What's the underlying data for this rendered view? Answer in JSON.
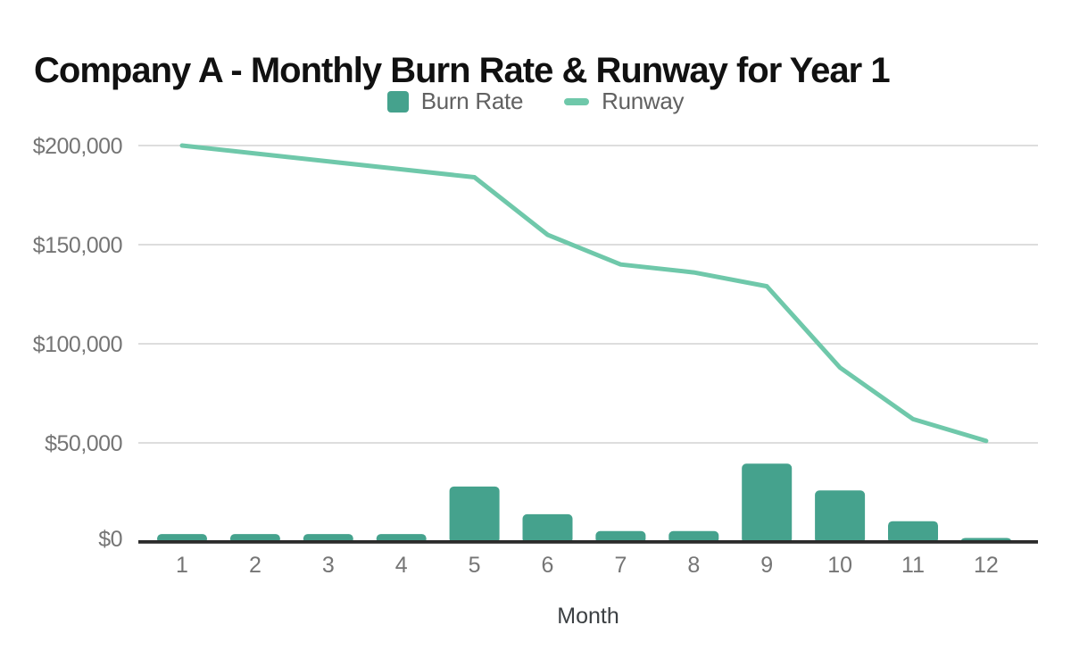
{
  "title": "Company A - Monthly Burn Rate & Runway for Year 1",
  "legend": {
    "items": [
      {
        "label": "Burn Rate",
        "swatch": "square",
        "color": "#45A28D"
      },
      {
        "label": "Runway",
        "swatch": "line",
        "color": "#6FC8AA"
      }
    ]
  },
  "chart_data": {
    "type": "bar+line combo",
    "title": "Company A - Monthly Burn Rate & Runway for Year 1",
    "categories": [
      "1",
      "2",
      "3",
      "4",
      "5",
      "6",
      "7",
      "8",
      "9",
      "10",
      "11",
      "12"
    ],
    "series": [
      {
        "name": "Burn Rate",
        "type": "bar",
        "color": "#45A28D",
        "values": [
          4000,
          4000,
          4000,
          4000,
          28000,
          14000,
          5500,
          5500,
          39500,
          26000,
          10500,
          2000
        ]
      },
      {
        "name": "Runway",
        "type": "line",
        "color": "#6FC8AA",
        "values": [
          200000,
          196000,
          192000,
          188000,
          184000,
          155000,
          140000,
          136000,
          129000,
          88000,
          62000,
          51000
        ]
      }
    ],
    "xlabel": "Month",
    "ylabel": "",
    "ylim": [
      0,
      200000
    ],
    "y_tick_labels": [
      "$0",
      "$50,000",
      "$100,000",
      "$150,000",
      "$200,000"
    ],
    "y_tick_values": [
      0,
      50000,
      100000,
      150000,
      200000
    ],
    "grid": "horizontal",
    "legend_position": "top-center",
    "axis_text_color": "#757575",
    "grid_color": "#d2d2d2",
    "axis_line_color": "#2b2b2b"
  }
}
